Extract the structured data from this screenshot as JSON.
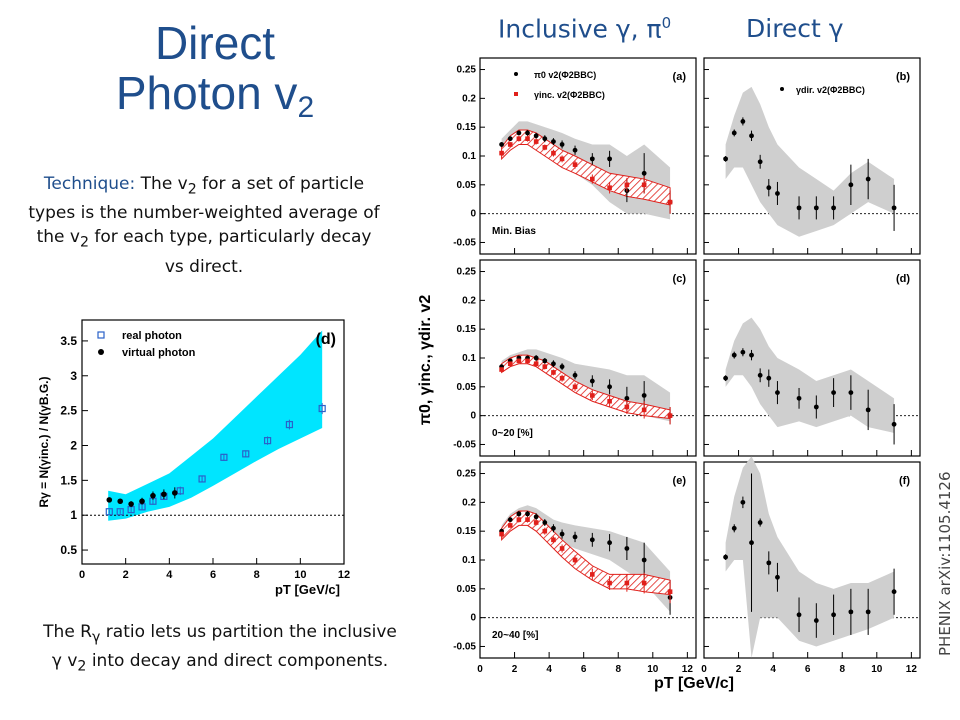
{
  "slide": {
    "title_line1": "Direct",
    "title_line2": "Photon v",
    "title_line2_sub": "2",
    "technique_keyword": "Technique:",
    "technique_pre": " The v",
    "technique_sub": "2",
    "technique_mid": " for a set of particle types is the number-weighted average of the v",
    "technique_sub2": "2",
    "technique_post": " for each type, particularly decay vs direct.",
    "rg_pre": "The R",
    "rg_sub": "γ",
    "rg_mid": " ratio lets us partition the inclusive γ v",
    "rg_sub2": "2",
    "rg_post": " into decay and direct components.",
    "col_left": "Inclusive γ, π",
    "col_left_sup": "0",
    "col_right": "Direct γ",
    "source": "PHENIX arXiv:1105.4126"
  },
  "colors": {
    "title": "#1f4e8c",
    "band_cyan": "#00e5ff",
    "band_gray": "#cfcfcf",
    "red": "#e0201b",
    "black": "#000000",
    "open_blue": "#2a62c9"
  },
  "chart_data": [
    {
      "id": "d-small",
      "type": "scatter",
      "panel_label": "(d)",
      "xlabel": "pT [GeV/c]",
      "ylabel": "Rγ = N(γinc.) / N(γB.G.)",
      "xlim": [
        0,
        12
      ],
      "ylim": [
        0.3,
        3.8
      ],
      "xticks": [
        0,
        2,
        4,
        6,
        8,
        10,
        12
      ],
      "yticks": [
        0.5,
        1,
        1.5,
        2,
        2.5,
        3,
        3.5
      ],
      "ytick_labels": [
        "0.5",
        "1",
        "1.5",
        "2",
        "2.5",
        "3",
        "3.5"
      ],
      "reference_line": 1,
      "legend": [
        "real photon",
        "virtual photon"
      ],
      "band": {
        "x": [
          1.2,
          2,
          3,
          4,
          5,
          6,
          7,
          8,
          9,
          10,
          11
        ],
        "low": [
          0.92,
          0.95,
          1.05,
          1.12,
          1.25,
          1.42,
          1.6,
          1.78,
          1.95,
          2.1,
          2.25
        ],
        "high": [
          1.35,
          1.3,
          1.45,
          1.6,
          1.85,
          2.1,
          2.4,
          2.7,
          3.0,
          3.3,
          3.65
        ]
      },
      "series": [
        {
          "name": "real photon",
          "marker": "open-square",
          "x": [
            1.25,
            1.75,
            2.25,
            2.75,
            3.25,
            3.75,
            4.5,
            5.5,
            6.5,
            7.5,
            8.5,
            9.5,
            11.0
          ],
          "y": [
            1.05,
            1.05,
            1.08,
            1.12,
            1.2,
            1.27,
            1.35,
            1.52,
            1.83,
            1.88,
            2.07,
            2.3,
            2.53
          ],
          "err": [
            0.03,
            0.03,
            0.04,
            0.04,
            0.05,
            0.05,
            0.06,
            0.05,
            0.05,
            0.05,
            0.06,
            0.07,
            0.08
          ]
        },
        {
          "name": "virtual photon",
          "marker": "filled-circle",
          "x": [
            1.25,
            1.75,
            2.25,
            2.75,
            3.25,
            3.75,
            4.25
          ],
          "y": [
            1.22,
            1.2,
            1.16,
            1.2,
            1.28,
            1.3,
            1.32
          ],
          "err": [
            0.03,
            0.03,
            0.04,
            0.05,
            0.06,
            0.07,
            0.08
          ]
        }
      ]
    },
    {
      "id": "grid",
      "type": "scatter",
      "xlabel": "pT [GeV/c]",
      "ylabel": "π0, γinc., γdir. v2",
      "xlim": [
        0,
        12.5
      ],
      "ylim": [
        -0.07,
        0.27
      ],
      "xticks": [
        0,
        2,
        4,
        6,
        8,
        10,
        12
      ],
      "yticks": [
        -0.05,
        0,
        0.05,
        0.1,
        0.15,
        0.2,
        0.25
      ],
      "ytick_labels": [
        "-0.05",
        "0",
        "0.05",
        "0.1",
        "0.15",
        "0.2",
        "0.25"
      ],
      "legend": [
        "π0 v2(Φ2BBC)",
        "γinc. v2(Φ2BBC)",
        "γdir. v2(Φ2BBC)"
      ],
      "panels": [
        {
          "label": "(a)",
          "centrality": "Min. Bias",
          "kind": "inclusive",
          "pi0": {
            "x": [
              1.25,
              1.75,
              2.25,
              2.75,
              3.25,
              3.75,
              4.25,
              4.75,
              5.5,
              6.5,
              7.5,
              8.5,
              9.5,
              11
            ],
            "y": [
              0.12,
              0.13,
              0.14,
              0.14,
              0.135,
              0.13,
              0.125,
              0.12,
              0.11,
              0.095,
              0.095,
              0.04,
              0.07,
              0.02
            ],
            "err": [
              0.004,
              0.004,
              0.004,
              0.005,
              0.005,
              0.006,
              0.006,
              0.007,
              0.008,
              0.01,
              0.014,
              0.02,
              0.035,
              0.02
            ]
          },
          "gray": {
            "low": [
              0.1,
              0.11,
              0.12,
              0.12,
              0.115,
              0.1,
              0.09,
              0.08,
              0.07,
              0.05,
              0.02,
              0.0,
              0.0,
              -0.01
            ],
            "high": [
              0.13,
              0.145,
              0.16,
              0.16,
              0.155,
              0.15,
              0.145,
              0.14,
              0.13,
              0.12,
              0.12,
              0.1,
              0.12,
              0.08
            ]
          },
          "inc": {
            "x": [
              1.25,
              1.75,
              2.25,
              2.75,
              3.25,
              3.75,
              4.25,
              4.75,
              5.5,
              6.5,
              7.5,
              8.5,
              9.5,
              11
            ],
            "y": [
              0.105,
              0.12,
              0.13,
              0.13,
              0.125,
              0.115,
              0.105,
              0.095,
              0.085,
              0.06,
              0.045,
              0.05,
              0.05,
              0.02
            ],
            "err": [
              0.004,
              0.004,
              0.005,
              0.005,
              0.005,
              0.005,
              0.006,
              0.006,
              0.007,
              0.008,
              0.01,
              0.012,
              0.015,
              0.02
            ]
          },
          "hatch": {
            "low": [
              0.095,
              0.11,
              0.12,
              0.12,
              0.11,
              0.1,
              0.09,
              0.08,
              0.07,
              0.055,
              0.04,
              0.03,
              0.025,
              0.015
            ],
            "high": [
              0.115,
              0.135,
              0.145,
              0.145,
              0.14,
              0.13,
              0.12,
              0.11,
              0.1,
              0.085,
              0.07,
              0.065,
              0.06,
              0.045
            ]
          }
        },
        {
          "label": "(b)",
          "centrality": "",
          "kind": "direct",
          "dir": {
            "x": [
              1.25,
              1.75,
              2.25,
              2.75,
              3.25,
              3.75,
              4.25,
              5.5,
              6.5,
              7.5,
              8.5,
              9.5,
              11
            ],
            "y": [
              0.095,
              0.14,
              0.16,
              0.135,
              0.09,
              0.045,
              0.035,
              0.01,
              0.01,
              0.01,
              0.05,
              0.06,
              0.01
            ],
            "err": [
              0.005,
              0.006,
              0.007,
              0.009,
              0.012,
              0.015,
              0.02,
              0.02,
              0.02,
              0.02,
              0.035,
              0.035,
              0.04
            ]
          },
          "gray": {
            "low": [
              0.06,
              0.08,
              0.08,
              0.05,
              0.02,
              0.0,
              -0.02,
              -0.04,
              -0.03,
              -0.02,
              0.0,
              0.02,
              0.0
            ],
            "high": [
              0.12,
              0.17,
              0.21,
              0.22,
              0.19,
              0.15,
              0.12,
              0.08,
              0.06,
              0.04,
              0.07,
              0.09,
              0.06
            ]
          }
        },
        {
          "label": "(c)",
          "centrality": "0~20 [%]",
          "kind": "inclusive",
          "pi0": {
            "x": [
              1.25,
              1.75,
              2.25,
              2.75,
              3.25,
              3.75,
              4.25,
              4.75,
              5.5,
              6.5,
              7.5,
              8.5,
              9.5,
              11
            ],
            "y": [
              0.085,
              0.095,
              0.1,
              0.1,
              0.1,
              0.095,
              0.09,
              0.085,
              0.07,
              0.06,
              0.05,
              0.03,
              0.035,
              0.0
            ],
            "err": [
              0.003,
              0.003,
              0.004,
              0.004,
              0.005,
              0.005,
              0.006,
              0.006,
              0.007,
              0.01,
              0.013,
              0.02,
              0.025,
              0.015
            ]
          },
          "gray": {
            "low": [
              0.075,
              0.085,
              0.09,
              0.09,
              0.085,
              0.08,
              0.075,
              0.065,
              0.05,
              0.035,
              0.02,
              0.005,
              0.0,
              -0.01
            ],
            "high": [
              0.095,
              0.105,
              0.11,
              0.115,
              0.115,
              0.11,
              0.105,
              0.1,
              0.09,
              0.085,
              0.08,
              0.07,
              0.07,
              0.04
            ]
          },
          "inc": {
            "x": [
              1.25,
              1.75,
              2.25,
              2.75,
              3.25,
              3.75,
              4.25,
              4.75,
              5.5,
              6.5,
              7.5,
              8.5,
              9.5,
              11
            ],
            "y": [
              0.08,
              0.09,
              0.095,
              0.095,
              0.09,
              0.085,
              0.075,
              0.065,
              0.05,
              0.035,
              0.025,
              0.015,
              0.01,
              0.0
            ],
            "err": [
              0.003,
              0.003,
              0.004,
              0.004,
              0.005,
              0.005,
              0.005,
              0.006,
              0.007,
              0.008,
              0.01,
              0.012,
              0.015,
              0.015
            ]
          },
          "hatch": {
            "low": [
              0.075,
              0.085,
              0.09,
              0.09,
              0.085,
              0.075,
              0.065,
              0.055,
              0.04,
              0.025,
              0.015,
              0.005,
              0.0,
              -0.005
            ],
            "high": [
              0.09,
              0.1,
              0.105,
              0.105,
              0.1,
              0.095,
              0.085,
              0.075,
              0.06,
              0.045,
              0.035,
              0.025,
              0.02,
              0.01
            ]
          }
        },
        {
          "label": "(d)",
          "centrality": "",
          "kind": "direct",
          "dir": {
            "x": [
              1.25,
              1.75,
              2.25,
              2.75,
              3.25,
              3.75,
              4.25,
              5.5,
              6.5,
              7.5,
              8.5,
              9.5,
              11
            ],
            "y": [
              0.065,
              0.105,
              0.11,
              0.105,
              0.07,
              0.065,
              0.04,
              0.03,
              0.015,
              0.04,
              0.04,
              0.01,
              -0.015
            ],
            "err": [
              0.005,
              0.006,
              0.007,
              0.009,
              0.012,
              0.015,
              0.02,
              0.018,
              0.02,
              0.025,
              0.03,
              0.035,
              0.035
            ]
          },
          "gray": {
            "low": [
              0.05,
              0.07,
              0.07,
              0.05,
              0.02,
              0.0,
              -0.02,
              -0.01,
              -0.02,
              -0.01,
              0.0,
              -0.02,
              -0.03
            ],
            "high": [
              0.08,
              0.13,
              0.16,
              0.17,
              0.15,
              0.12,
              0.1,
              0.08,
              0.06,
              0.07,
              0.08,
              0.06,
              0.03
            ]
          }
        },
        {
          "label": "(e)",
          "centrality": "20~40 [%]",
          "kind": "inclusive",
          "pi0": {
            "x": [
              1.25,
              1.75,
              2.25,
              2.75,
              3.25,
              3.75,
              4.25,
              4.75,
              5.5,
              6.5,
              7.5,
              8.5,
              9.5,
              11
            ],
            "y": [
              0.15,
              0.17,
              0.18,
              0.18,
              0.175,
              0.165,
              0.155,
              0.145,
              0.14,
              0.135,
              0.13,
              0.12,
              0.1,
              0.035
            ],
            "err": [
              0.004,
              0.004,
              0.005,
              0.005,
              0.006,
              0.006,
              0.007,
              0.008,
              0.009,
              0.012,
              0.015,
              0.02,
              0.03,
              0.03
            ]
          },
          "gray": {
            "low": [
              0.14,
              0.16,
              0.165,
              0.165,
              0.16,
              0.15,
              0.14,
              0.13,
              0.12,
              0.11,
              0.1,
              0.08,
              0.06,
              0.01
            ],
            "high": [
              0.16,
              0.18,
              0.19,
              0.195,
              0.19,
              0.18,
              0.17,
              0.165,
              0.16,
              0.155,
              0.15,
              0.14,
              0.13,
              0.08
            ]
          },
          "inc": {
            "x": [
              1.25,
              1.75,
              2.25,
              2.75,
              3.25,
              3.75,
              4.25,
              4.75,
              5.5,
              6.5,
              7.5,
              8.5,
              9.5,
              11
            ],
            "y": [
              0.145,
              0.16,
              0.17,
              0.17,
              0.165,
              0.15,
              0.135,
              0.12,
              0.1,
              0.075,
              0.06,
              0.06,
              0.06,
              0.045
            ],
            "err": [
              0.004,
              0.004,
              0.005,
              0.005,
              0.005,
              0.006,
              0.006,
              0.007,
              0.008,
              0.01,
              0.012,
              0.015,
              0.018,
              0.02
            ]
          },
          "hatch": {
            "low": [
              0.135,
              0.15,
              0.16,
              0.16,
              0.15,
              0.135,
              0.12,
              0.105,
              0.085,
              0.065,
              0.05,
              0.05,
              0.045,
              0.04
            ],
            "high": [
              0.155,
              0.175,
              0.185,
              0.185,
              0.18,
              0.165,
              0.15,
              0.135,
              0.115,
              0.09,
              0.075,
              0.075,
              0.075,
              0.065
            ]
          }
        },
        {
          "label": "(f)",
          "centrality": "",
          "kind": "direct",
          "dir": {
            "x": [
              1.25,
              1.75,
              2.25,
              2.75,
              3.25,
              3.75,
              4.25,
              5.5,
              6.5,
              7.5,
              8.5,
              9.5,
              11
            ],
            "y": [
              0.105,
              0.155,
              0.2,
              0.13,
              0.165,
              0.095,
              0.07,
              0.005,
              -0.005,
              0.005,
              0.01,
              0.01,
              0.045
            ],
            "err": [
              0.005,
              0.007,
              0.01,
              0.12,
              0.007,
              0.02,
              0.025,
              0.03,
              0.03,
              0.035,
              0.04,
              0.04,
              0.04
            ]
          },
          "gray": {
            "low": [
              0.08,
              0.1,
              0.1,
              -0.07,
              0.0,
              0.0,
              0.0,
              -0.04,
              -0.05,
              -0.04,
              -0.03,
              -0.02,
              0.0
            ],
            "high": [
              0.13,
              0.21,
              0.26,
              0.28,
              0.25,
              0.18,
              0.14,
              0.08,
              0.06,
              0.05,
              0.06,
              0.06,
              0.08
            ]
          }
        }
      ]
    }
  ]
}
